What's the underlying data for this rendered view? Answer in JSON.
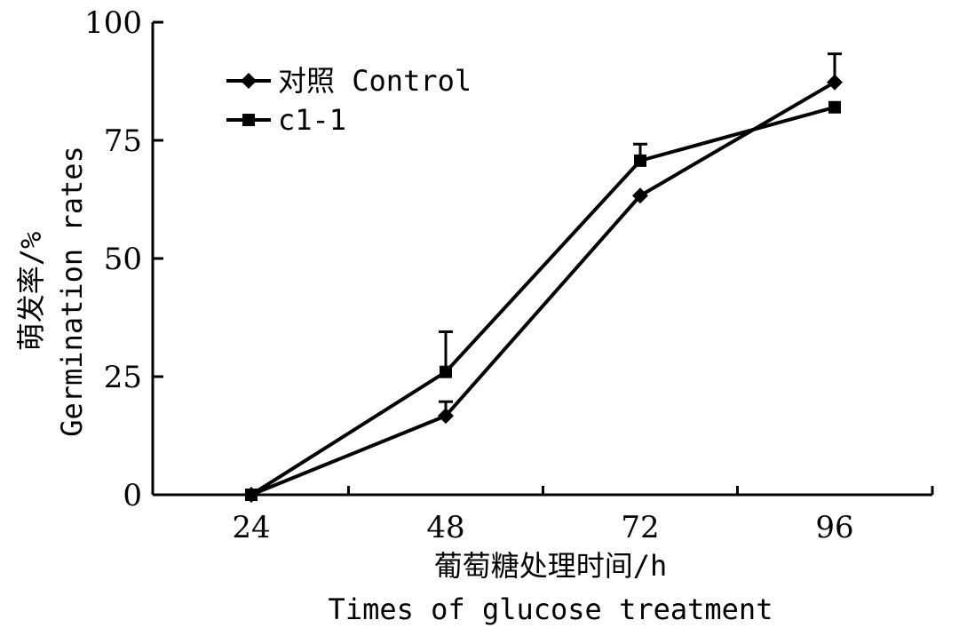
{
  "chart_data": {
    "type": "line",
    "x": [
      24,
      48,
      72,
      96
    ],
    "xlabel": "葡萄糖处理时间/h",
    "xlabel_en": "Times of glucose treatment",
    "ylabel": "萌发率/%",
    "ylabel_en": "Germination rates",
    "ylim": [
      0,
      100
    ],
    "yticks": [
      0,
      25,
      50,
      75,
      100
    ],
    "xticks": [
      24,
      48,
      72,
      96
    ],
    "grid": false,
    "legend_position": "top-left",
    "series": [
      {
        "name": "对照 Control",
        "marker": "diamond",
        "values": [
          0,
          16.7,
          63.3,
          87.3
        ],
        "errors": [
          0,
          3.0,
          0,
          6.0
        ]
      },
      {
        "name": "c1-1",
        "marker": "square",
        "values": [
          0,
          26.0,
          70.7,
          82.0
        ],
        "errors": [
          0,
          8.5,
          3.5,
          0
        ]
      }
    ]
  }
}
